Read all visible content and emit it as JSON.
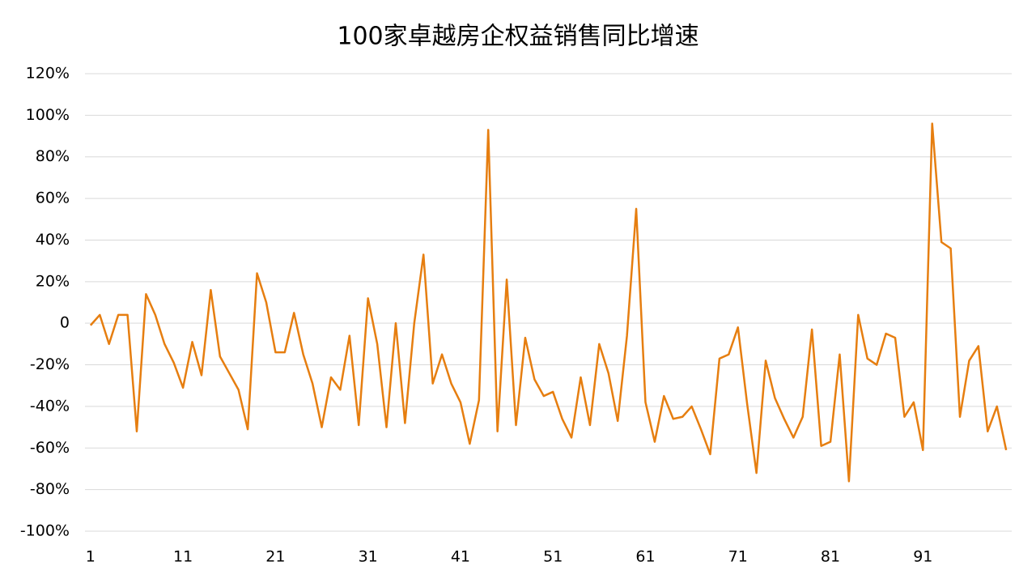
{
  "chart_data": {
    "type": "line",
    "title": "100家卓越房企权益销售同比增速",
    "x": [
      1,
      2,
      3,
      4,
      5,
      6,
      7,
      8,
      9,
      10,
      11,
      12,
      13,
      14,
      15,
      16,
      17,
      18,
      19,
      20,
      21,
      22,
      23,
      24,
      25,
      26,
      27,
      28,
      29,
      30,
      31,
      32,
      33,
      34,
      35,
      36,
      37,
      38,
      39,
      40,
      41,
      42,
      43,
      44,
      45,
      46,
      47,
      48,
      49,
      50,
      51,
      52,
      53,
      54,
      55,
      56,
      57,
      58,
      59,
      60,
      61,
      62,
      63,
      64,
      65,
      66,
      67,
      68,
      69,
      70,
      71,
      72,
      73,
      74,
      75,
      76,
      77,
      78,
      79,
      80,
      81,
      82,
      83,
      84,
      85,
      86,
      87,
      88,
      89,
      90,
      91,
      92,
      93,
      94,
      95,
      96,
      97,
      98,
      99,
      100
    ],
    "series": [
      {
        "name": "同比增速",
        "color": "#e67e10",
        "values": [
          -1,
          4,
          -10,
          4,
          4,
          -52,
          14,
          4,
          -10,
          -19,
          -31,
          -9,
          -25,
          16,
          -16,
          -24,
          -32,
          -51,
          24,
          10,
          -14,
          -14,
          5,
          -15,
          -29,
          -50,
          -26,
          -32,
          -6,
          -49,
          12,
          -10,
          -50,
          0,
          -48,
          0,
          33,
          -29,
          -15,
          -29,
          -38,
          -58,
          -37,
          93,
          -52,
          21,
          -49,
          -7,
          -27,
          -35,
          -33,
          -46,
          -55,
          -26,
          -49,
          -10,
          -24,
          -47,
          -6,
          55,
          -38,
          -57,
          -35,
          -46,
          -45,
          -40,
          -51,
          -63,
          -17,
          -15,
          -2,
          -39,
          -72,
          -18,
          -36,
          -46,
          -55,
          -45,
          -3,
          -59,
          -57,
          -15,
          -76,
          4,
          -17,
          -20,
          -5,
          -7,
          -45,
          -38,
          -61,
          96,
          39,
          36,
          -45,
          -18,
          -11,
          -52,
          -40,
          -61
        ]
      }
    ],
    "xlim": [
      0.4,
      100.6
    ],
    "xticks": [
      1,
      11,
      21,
      31,
      41,
      51,
      61,
      71,
      81,
      91
    ],
    "ylim": [
      -100,
      120
    ],
    "yticks": [
      {
        "value": -100,
        "label": "-100%"
      },
      {
        "value": -80,
        "label": "-80%"
      },
      {
        "value": -60,
        "label": "-60%"
      },
      {
        "value": -40,
        "label": "-40%"
      },
      {
        "value": -20,
        "label": "-20%"
      },
      0,
      {
        "value": 20,
        "label": "20%"
      },
      {
        "value": 40,
        "label": "40%"
      },
      {
        "value": 60,
        "label": "60%"
      },
      {
        "value": 80,
        "label": "80%"
      },
      {
        "value": 100,
        "label": "100%"
      },
      {
        "value": 120,
        "label": "120%"
      }
    ],
    "grid": true
  }
}
